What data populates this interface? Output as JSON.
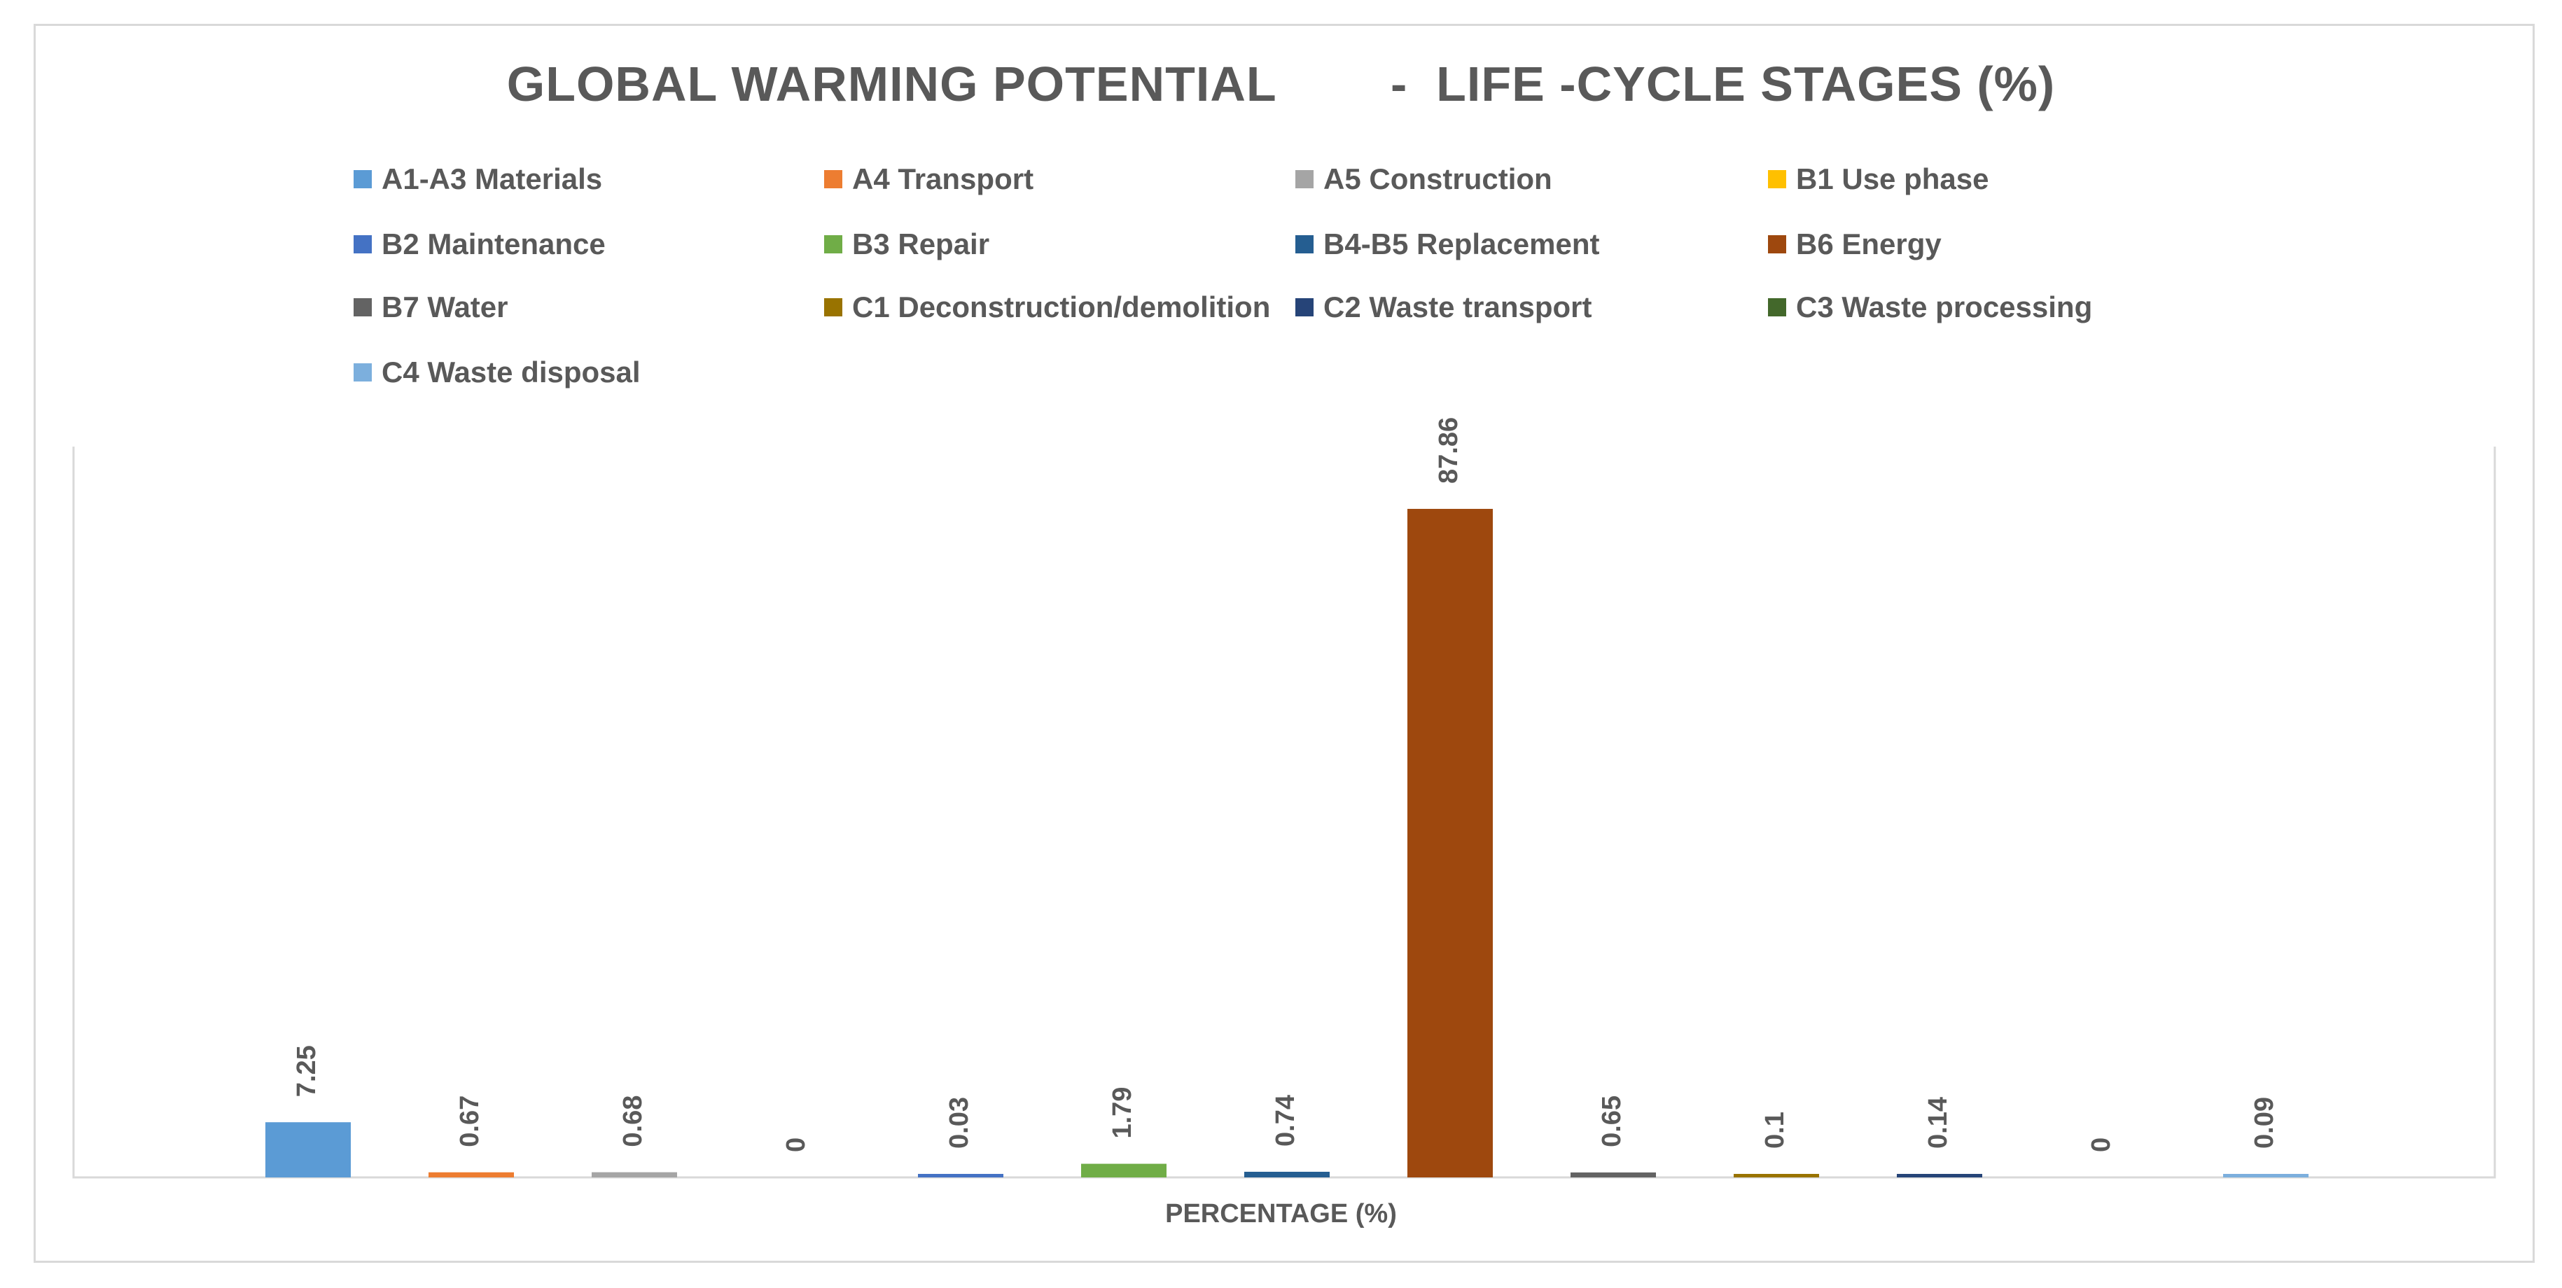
{
  "chart_data": {
    "type": "bar",
    "title": "GLOBAL WARMING POTENTIAL        -  LIFE -CYCLE STAGES (%)",
    "xlabel": "PERCENTAGE (%)",
    "ylabel": "",
    "ylim": [
      0,
      100
    ],
    "grid": false,
    "legend_position": "top",
    "series": [
      {
        "name": "A1-A3 Materials",
        "value": 7.25,
        "label": "7.25",
        "color": "#5b9bd5"
      },
      {
        "name": "A4 Transport",
        "value": 0.67,
        "label": "0.67",
        "color": "#ed7d31"
      },
      {
        "name": "A5 Construction",
        "value": 0.68,
        "label": "0.68",
        "color": "#a5a5a5"
      },
      {
        "name": "B1 Use phase",
        "value": 0,
        "label": "0",
        "color": "#ffc000"
      },
      {
        "name": "B2 Maintenance",
        "value": 0.03,
        "label": "0.03",
        "color": "#4472c4"
      },
      {
        "name": "B3 Repair",
        "value": 1.79,
        "label": "1.79",
        "color": "#70ad47"
      },
      {
        "name": "B4-B5 Replacement",
        "value": 0.74,
        "label": "0.74",
        "color": "#255e91"
      },
      {
        "name": "B6 Energy",
        "value": 87.86,
        "label": "87.86",
        "color": "#9e480e"
      },
      {
        "name": "B7 Water",
        "value": 0.65,
        "label": "0.65",
        "color": "#636363"
      },
      {
        "name": "C1 Deconstruction/demolition",
        "value": 0.1,
        "label": "0.1",
        "color": "#997300"
      },
      {
        "name": "C2 Waste transport",
        "value": 0.14,
        "label": "0.14",
        "color": "#264478"
      },
      {
        "name": "C3 Waste processing",
        "value": 0,
        "label": "0",
        "color": "#43682b"
      },
      {
        "name": "C4 Waste disposal",
        "value": 0.09,
        "label": "0.09",
        "color": "#7cafdd"
      }
    ]
  }
}
